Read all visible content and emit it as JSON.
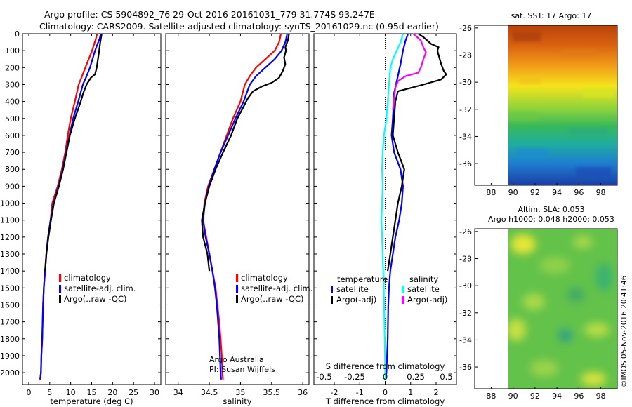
{
  "header": {
    "line1": "Argo profile: CS 5904892_76 29-Oct-2016 20161031_779 31.774S 93.247E",
    "line2": "Climatology: CARS2009. Satellite-adjusted climatology: synTS_20161029.nc (0.95d earlier)"
  },
  "side_stamp": "©IMOS 05-Nov-2016 20:41:46",
  "colors": {
    "climatology": "#ff0000",
    "satellite": "#0000ff",
    "argo": "#000000",
    "sal_sat": "#00ffff",
    "sal_argo": "#ff00ff"
  },
  "chart_data": [
    {
      "type": "line",
      "xlabel": "temperature (deg C)",
      "xlim": [
        -1.5,
        31.5
      ],
      "xticks": [
        0,
        5,
        10,
        15,
        20,
        25,
        30
      ],
      "ylim": [
        2070,
        0
      ],
      "yticks": [
        0,
        100,
        200,
        300,
        400,
        500,
        600,
        700,
        800,
        900,
        1000,
        1100,
        1200,
        1300,
        1400,
        1500,
        1600,
        1700,
        1800,
        1900,
        2000
      ],
      "legend": [
        "climatology",
        "satellite-adj. clim.",
        "Argo(..raw -QC)"
      ],
      "series": [
        {
          "name": "climatology",
          "color": "#ff0000",
          "points": [
            [
              16.3,
              0
            ],
            [
              16,
              30
            ],
            [
              15.6,
              60
            ],
            [
              15.1,
              100
            ],
            [
              14.3,
              150
            ],
            [
              13.5,
              200
            ],
            [
              12.7,
              250
            ],
            [
              11.9,
              300
            ],
            [
              11,
              400
            ],
            [
              10,
              500
            ],
            [
              9.3,
              600
            ],
            [
              8.7,
              700
            ],
            [
              7.9,
              800
            ],
            [
              6.9,
              900
            ],
            [
              5.6,
              1000
            ],
            [
              5.2,
              1100
            ],
            [
              4.6,
              1200
            ],
            [
              4.2,
              1300
            ],
            [
              3.9,
              1400
            ],
            [
              3.6,
              1500
            ],
            [
              3.4,
              1600
            ],
            [
              3.2,
              1800
            ],
            [
              3,
              1900
            ],
            [
              2.9,
              2000
            ],
            [
              2.7,
              2040
            ]
          ]
        },
        {
          "name": "satellite-adj. clim.",
          "color": "#0000ff",
          "points": [
            [
              17.2,
              0
            ],
            [
              16.9,
              30
            ],
            [
              16.4,
              60
            ],
            [
              15.8,
              100
            ],
            [
              15.2,
              150
            ],
            [
              14.6,
              200
            ],
            [
              13.8,
              250
            ],
            [
              12.9,
              300
            ],
            [
              11.8,
              400
            ],
            [
              10.6,
              500
            ],
            [
              9.7,
              600
            ],
            [
              8.9,
              700
            ],
            [
              8.1,
              800
            ],
            [
              7.1,
              900
            ],
            [
              5.9,
              1000
            ],
            [
              5.2,
              1100
            ],
            [
              4.6,
              1200
            ],
            [
              4.2,
              1300
            ],
            [
              3.9,
              1400
            ],
            [
              3.6,
              1500
            ],
            [
              3.4,
              1600
            ],
            [
              3.2,
              1800
            ],
            [
              3,
              1900
            ],
            [
              2.9,
              2000
            ],
            [
              2.7,
              2040
            ]
          ]
        },
        {
          "name": "Argo(..raw -QC)",
          "color": "#000000",
          "points": [
            [
              17.4,
              0
            ],
            [
              17.2,
              30
            ],
            [
              17,
              60
            ],
            [
              16.8,
              100
            ],
            [
              16.5,
              150
            ],
            [
              16.2,
              200
            ],
            [
              15.8,
              240
            ],
            [
              14.8,
              260
            ],
            [
              13.8,
              300
            ],
            [
              13,
              350
            ],
            [
              12.4,
              400
            ],
            [
              11,
              500
            ],
            [
              9.8,
              600
            ],
            [
              9,
              700
            ],
            [
              8.2,
              800
            ],
            [
              7.2,
              900
            ],
            [
              6,
              1000
            ],
            [
              5.3,
              1100
            ],
            [
              4.7,
              1200
            ],
            [
              4.2,
              1300
            ],
            [
              3.9,
              1400
            ]
          ]
        }
      ]
    },
    {
      "type": "line",
      "xlabel": "salinity",
      "xlim": [
        33.8,
        36.1
      ],
      "xticks": [
        34,
        34.5,
        35,
        35.5,
        36
      ],
      "ylim": [
        2070,
        0
      ],
      "legend": [
        "climatology",
        "satellite-adj. clim.",
        "Argo(..raw -QC)"
      ],
      "annotations": [
        "Argo Australia",
        "PI: Susan Wijffels"
      ],
      "series": [
        {
          "name": "climatology",
          "color": "#ff0000",
          "points": [
            [
              35.65,
              0
            ],
            [
              35.62,
              50
            ],
            [
              35.55,
              100
            ],
            [
              35.4,
              150
            ],
            [
              35.25,
              200
            ],
            [
              35.15,
              250
            ],
            [
              35.07,
              300
            ],
            [
              35,
              400
            ],
            [
              34.88,
              500
            ],
            [
              34.78,
              600
            ],
            [
              34.68,
              700
            ],
            [
              34.58,
              800
            ],
            [
              34.48,
              900
            ],
            [
              34.42,
              1000
            ],
            [
              34.4,
              1100
            ],
            [
              34.45,
              1200
            ],
            [
              34.5,
              1300
            ],
            [
              34.55,
              1400
            ],
            [
              34.6,
              1500
            ],
            [
              34.63,
              1600
            ],
            [
              34.66,
              1700
            ],
            [
              34.68,
              1800
            ],
            [
              34.7,
              1900
            ],
            [
              34.71,
              2000
            ],
            [
              34.72,
              2040
            ]
          ]
        },
        {
          "name": "satellite-adj. clim.",
          "color": "#0000ff",
          "points": [
            [
              35.75,
              0
            ],
            [
              35.72,
              50
            ],
            [
              35.66,
              100
            ],
            [
              35.55,
              150
            ],
            [
              35.4,
              200
            ],
            [
              35.25,
              250
            ],
            [
              35.15,
              300
            ],
            [
              35.05,
              400
            ],
            [
              34.92,
              500
            ],
            [
              34.8,
              600
            ],
            [
              34.68,
              700
            ],
            [
              34.58,
              800
            ],
            [
              34.49,
              900
            ],
            [
              34.43,
              1000
            ],
            [
              34.4,
              1100
            ],
            [
              34.44,
              1200
            ],
            [
              34.5,
              1300
            ],
            [
              34.55,
              1400
            ],
            [
              34.59,
              1500
            ],
            [
              34.62,
              1600
            ],
            [
              34.64,
              1700
            ],
            [
              34.66,
              1800
            ],
            [
              34.67,
              1900
            ],
            [
              34.68,
              2000
            ],
            [
              34.69,
              2040
            ]
          ]
        },
        {
          "name": "Argo(..raw -QC)",
          "color": "#000000",
          "points": [
            [
              35.78,
              0
            ],
            [
              35.76,
              40
            ],
            [
              35.72,
              80
            ],
            [
              35.73,
              100
            ],
            [
              35.7,
              140
            ],
            [
              35.72,
              180
            ],
            [
              35.68,
              220
            ],
            [
              35.62,
              260
            ],
            [
              35.5,
              290
            ],
            [
              35.35,
              310
            ],
            [
              35.2,
              340
            ],
            [
              35.12,
              380
            ],
            [
              35.05,
              430
            ],
            [
              34.95,
              500
            ],
            [
              34.85,
              600
            ],
            [
              34.72,
              700
            ],
            [
              34.6,
              800
            ],
            [
              34.5,
              900
            ],
            [
              34.43,
              1000
            ],
            [
              34.38,
              1100
            ],
            [
              34.4,
              1200
            ],
            [
              34.47,
              1300
            ],
            [
              34.5,
              1400
            ]
          ]
        }
      ]
    },
    {
      "type": "line",
      "xlabel": "T difference from climatology",
      "xlabel2": "S difference from climatology",
      "xlim": [
        -2.8,
        2.8
      ],
      "xticks": [
        -2,
        -1,
        0,
        1,
        2
      ],
      "xticks2": [
        "-0.5",
        "-0.25",
        "0",
        "0.25",
        "0.5"
      ],
      "ylim": [
        2070,
        0
      ],
      "legend": {
        "temperature_title": "temperature",
        "salinity_title": "salinity",
        "items": [
          "satellite",
          "Argo(-adj)",
          "satellite",
          "Argo(-adj)"
        ]
      },
      "series": [
        {
          "name": "temperature satellite",
          "color": "#0000ff",
          "points": [
            [
              0.9,
              0
            ],
            [
              0.8,
              40
            ],
            [
              0.7,
              100
            ],
            [
              0.6,
              180
            ],
            [
              0.5,
              250
            ],
            [
              0.35,
              350
            ],
            [
              0.3,
              500
            ],
            [
              0.25,
              600
            ],
            [
              0.35,
              700
            ],
            [
              0.6,
              800
            ],
            [
              0.7,
              900
            ],
            [
              0.65,
              1000
            ],
            [
              0.55,
              1100
            ],
            [
              0.4,
              1200
            ],
            [
              0.3,
              1300
            ],
            [
              0.2,
              1400
            ],
            [
              0.15,
              1500
            ],
            [
              0.12,
              1600
            ],
            [
              0.1,
              1800
            ],
            [
              0.05,
              2000
            ],
            [
              0,
              2040
            ]
          ]
        },
        {
          "name": "temperature Argo(-adj)",
          "color": "#000000",
          "points": [
            [
              1.3,
              0
            ],
            [
              1.5,
              20
            ],
            [
              1.8,
              60
            ],
            [
              2.1,
              80
            ],
            [
              2.05,
              100
            ],
            [
              2.2,
              180
            ],
            [
              2.3,
              220
            ],
            [
              2.4,
              240
            ],
            [
              2.2,
              270
            ],
            [
              1.5,
              300
            ],
            [
              0.5,
              340
            ],
            [
              0.4,
              400
            ],
            [
              0.35,
              500
            ],
            [
              0.3,
              600
            ],
            [
              0.5,
              700
            ],
            [
              0.75,
              800
            ],
            [
              0.65,
              900
            ],
            [
              0.5,
              1000
            ],
            [
              0.4,
              1100
            ],
            [
              0.3,
              1200
            ],
            [
              0.2,
              1300
            ],
            [
              0.1,
              1400
            ]
          ]
        },
        {
          "name": "salinity satellite",
          "color": "#00ffff",
          "points": [
            [
              0.7,
              0
            ],
            [
              0.6,
              50
            ],
            [
              0.45,
              100
            ],
            [
              0.3,
              150
            ],
            [
              0.2,
              200
            ],
            [
              0.15,
              300
            ],
            [
              0.1,
              400
            ],
            [
              0.05,
              500
            ],
            [
              -0.05,
              600
            ],
            [
              -0.1,
              700
            ],
            [
              -0.12,
              800
            ],
            [
              -0.1,
              900
            ],
            [
              -0.12,
              1000
            ],
            [
              -0.15,
              1100
            ],
            [
              -0.12,
              1200
            ],
            [
              -0.1,
              1300
            ],
            [
              -0.08,
              1400
            ],
            [
              -0.06,
              1500
            ],
            [
              -0.04,
              1600
            ],
            [
              -0.02,
              1800
            ],
            [
              0,
              2000
            ],
            [
              0.02,
              2040
            ]
          ]
        },
        {
          "name": "salinity Argo(-adj)",
          "color": "#ff00ff",
          "points": [
            [
              1.1,
              0
            ],
            [
              1.4,
              40
            ],
            [
              1.5,
              80
            ],
            [
              1.6,
              110
            ],
            [
              1.5,
              150
            ],
            [
              1.4,
              200
            ],
            [
              1.3,
              230
            ],
            [
              0.8,
              250
            ],
            [
              0.5,
              280
            ],
            [
              0.4,
              320
            ],
            [
              0.35,
              380
            ],
            [
              0.3,
              450
            ]
          ]
        }
      ]
    }
  ],
  "maps": [
    {
      "title": "sat. SST: 17 Argo: 17",
      "xticks": [
        "88",
        "90",
        "92",
        "94",
        "96",
        "98"
      ],
      "yticks": [
        "-26",
        "-28",
        "-30",
        "-32",
        "-34",
        "-36"
      ]
    },
    {
      "title": "Altim. SLA: 0.053",
      "title2": "Argo h1000: 0.048 h2000: 0.053",
      "xticks": [
        "88",
        "90",
        "92",
        "94",
        "96",
        "98"
      ],
      "yticks": [
        "-26",
        "-28",
        "-30",
        "-32",
        "-34",
        "-36"
      ]
    }
  ]
}
